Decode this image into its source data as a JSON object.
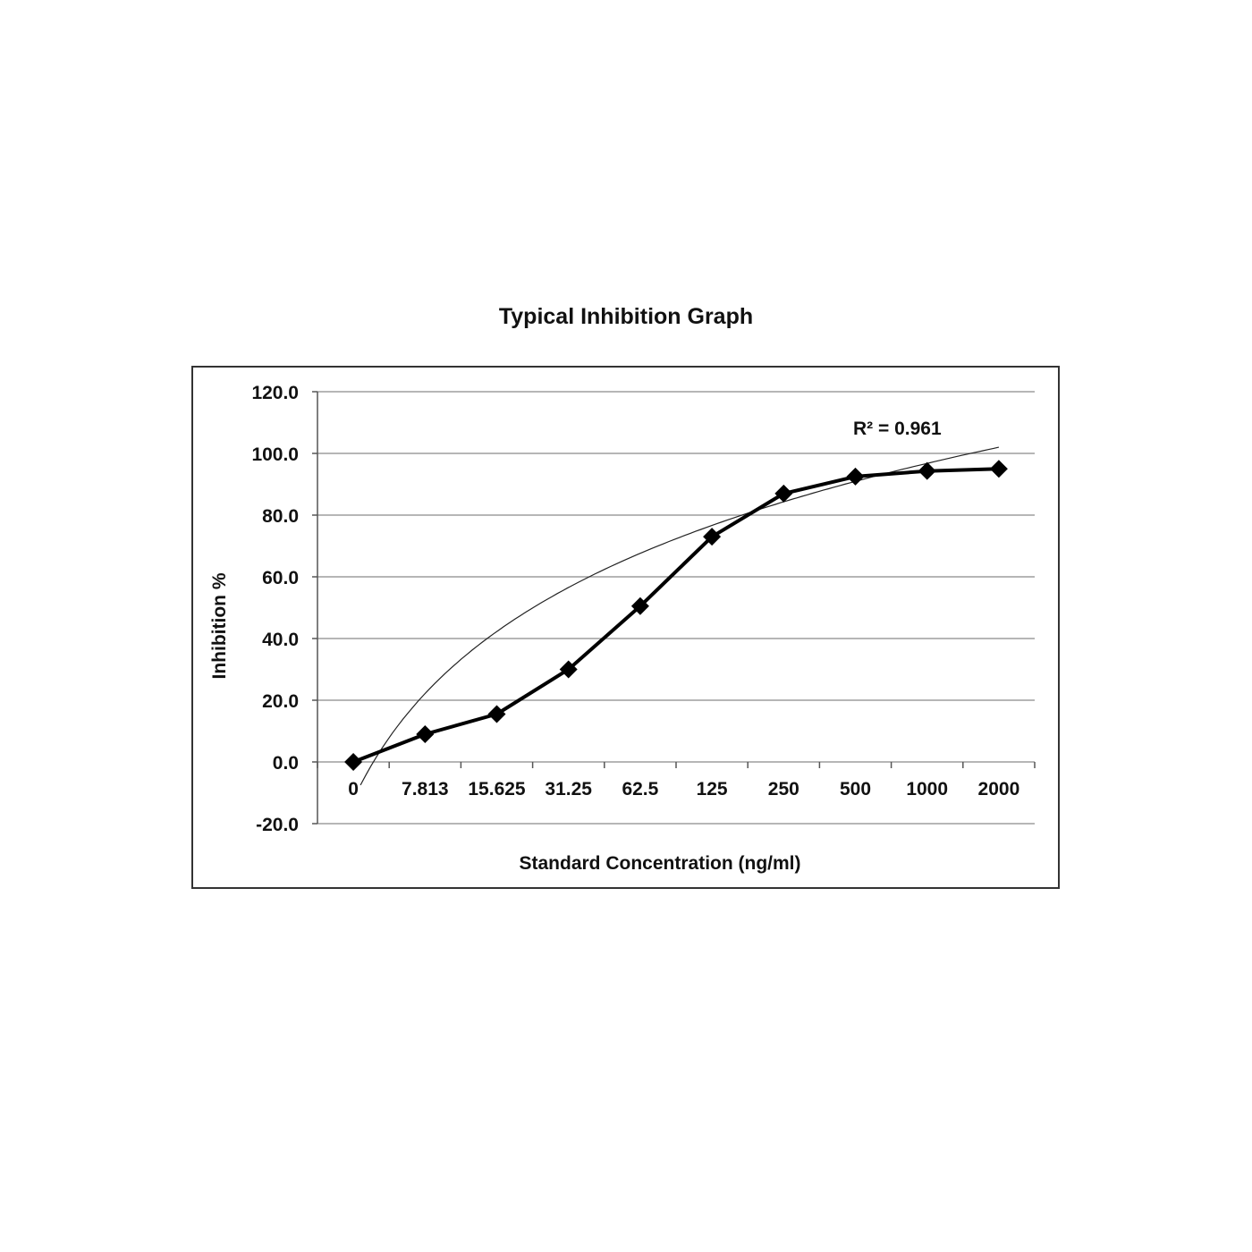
{
  "chart_data": {
    "type": "line",
    "title": "Typical Inhibition Graph",
    "xlabel": "Standard Concentration (ng/ml)",
    "ylabel": "Inhibition %",
    "categories": [
      "0",
      "7.813",
      "15.625",
      "31.25",
      "62.5",
      "125",
      "250",
      "500",
      "1000",
      "2000"
    ],
    "series": [
      {
        "values": [
          0.0,
          9.0,
          15.5,
          30.0,
          50.5,
          73.0,
          87.0,
          92.5,
          94.3,
          95.0
        ],
        "marker": "diamond",
        "color": "#000000"
      }
    ],
    "trendline": {
      "type": "logarithmic",
      "r2_label": "R² = 0.961",
      "start": [
        0.1,
        -7.5
      ],
      "end": [
        9.0,
        102.0
      ]
    },
    "yticks": [
      "120.0",
      "100.0",
      "80.0",
      "60.0",
      "40.0",
      "20.0",
      "0.0",
      "-20.0"
    ],
    "ylim": [
      -20,
      120
    ],
    "grid": true,
    "legend": "none"
  }
}
